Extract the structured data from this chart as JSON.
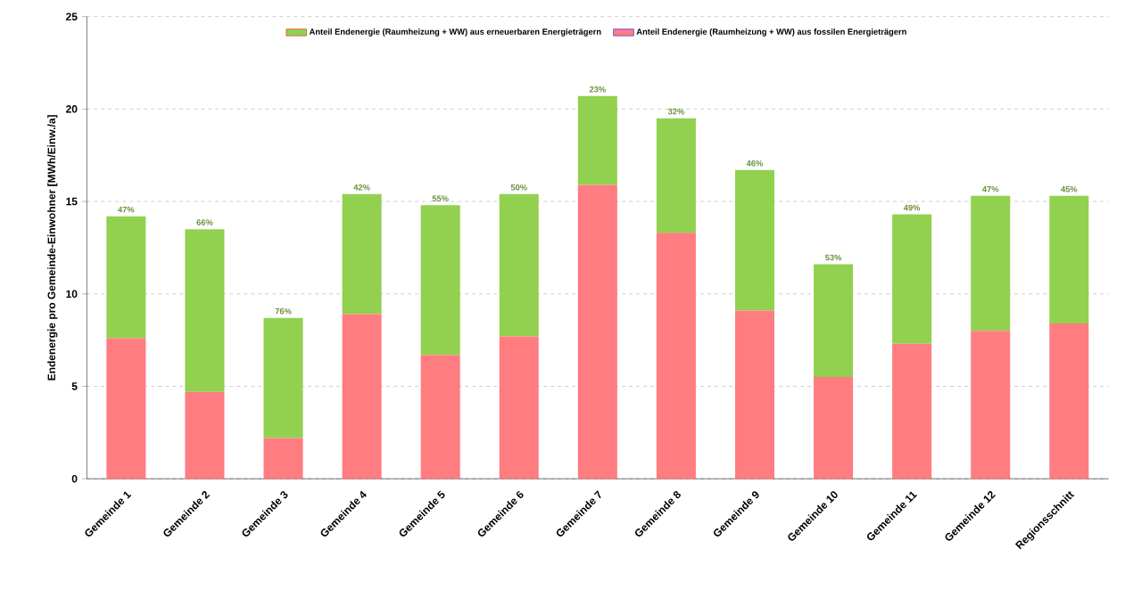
{
  "chart_data": {
    "type": "bar",
    "stacked": true,
    "ylabel": "Endenergie pro Gemeinde-Einwohner [MWh/Einw./a]",
    "categories": [
      "Gemeinde 1",
      "Gemeinde 2",
      "Gemeinde 3",
      "Gemeinde 4",
      "Gemeinde 5",
      "Gemeinde 6",
      "Gemeinde 7",
      "Gemeinde 8",
      "Gemeinde 9",
      "Gemeinde 10",
      "Gemeinde 11",
      "Gemeinde 12",
      "Regionsschnitt"
    ],
    "series": [
      {
        "name": "Anteil Endenergie (Raumheizung + WW) aus fossilen Energieträgern",
        "color": "#ff7c80",
        "values": [
          7.6,
          4.7,
          2.2,
          8.9,
          6.7,
          7.7,
          15.9,
          13.3,
          9.1,
          5.5,
          7.3,
          8.0,
          8.4
        ]
      },
      {
        "name": "Anteil Endenergie (Raumheizung + WW) aus erneuerbaren Energieträgern",
        "color": "#92d050",
        "values": [
          6.6,
          8.8,
          6.5,
          6.5,
          8.1,
          7.7,
          4.8,
          6.2,
          7.6,
          6.1,
          7.0,
          7.3,
          6.9
        ]
      }
    ],
    "annotations": [
      {
        "text": "47%",
        "x": "Gemeinde 1",
        "y": 14.2
      },
      {
        "text": "66%",
        "x": "Gemeinde 2",
        "y": 13.5
      },
      {
        "text": "76%",
        "x": "Gemeinde 3",
        "y": 8.7
      },
      {
        "text": "42%",
        "x": "Gemeinde 4",
        "y": 15.4
      },
      {
        "text": "55%",
        "x": "Gemeinde 5",
        "y": 14.8
      },
      {
        "text": "50%",
        "x": "Gemeinde 6",
        "y": 15.4
      },
      {
        "text": "23%",
        "x": "Gemeinde 7",
        "y": 20.7
      },
      {
        "text": "32%",
        "x": "Gemeinde 8",
        "y": 19.5
      },
      {
        "text": "46%",
        "x": "Gemeinde 9",
        "y": 16.7
      },
      {
        "text": "53%",
        "x": "Gemeinde 10",
        "y": 11.6
      },
      {
        "text": "49%",
        "x": "Gemeinde 11",
        "y": 14.3
      },
      {
        "text": "47%",
        "x": "Gemeinde 12",
        "y": 15.3
      },
      {
        "text": "45%",
        "x": "Regionsschnitt",
        "y": 15.3
      }
    ],
    "ylim": [
      0,
      25
    ],
    "yticks": [
      0,
      5,
      10,
      15,
      20,
      25
    ],
    "grid": "y",
    "legend": "top"
  }
}
